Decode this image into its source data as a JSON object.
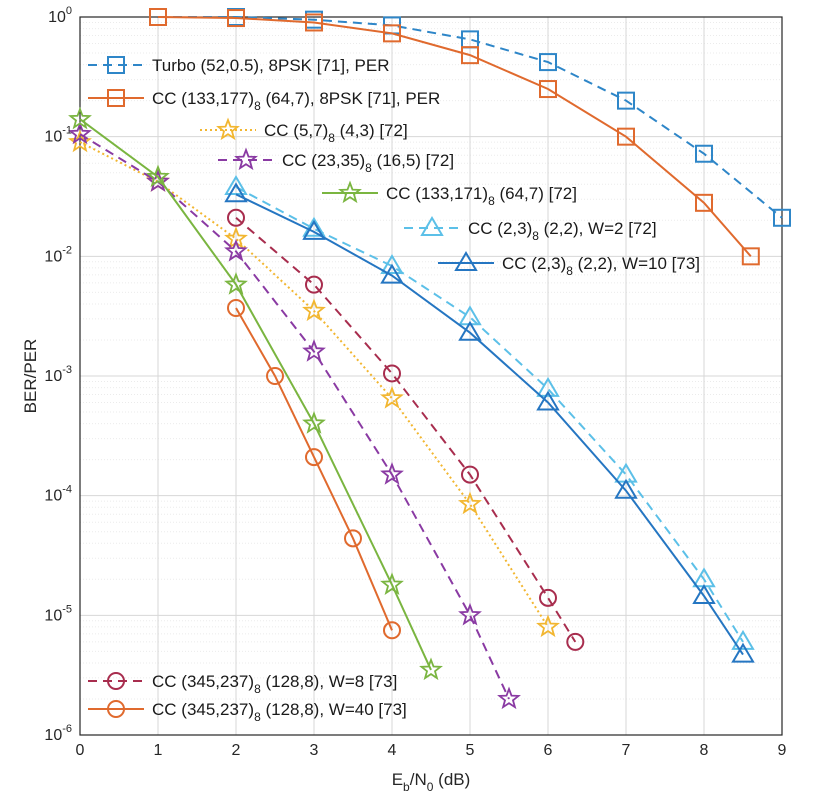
{
  "chart_data": {
    "type": "line",
    "title": "",
    "xlabel": "E_b/N_0 (dB)",
    "ylabel": "BER/PER",
    "xlim": [
      0,
      9
    ],
    "ylim": [
      1e-06,
      1
    ],
    "yscale": "log",
    "grid": true,
    "x_ticks": [
      "0",
      "1",
      "2",
      "3",
      "4",
      "5",
      "6",
      "7",
      "8",
      "9"
    ],
    "y_ticks": [
      {
        "base": "10",
        "exp": "0"
      },
      {
        "base": "10",
        "exp": "-1"
      },
      {
        "base": "10",
        "exp": "-2"
      },
      {
        "base": "10",
        "exp": "-3"
      },
      {
        "base": "10",
        "exp": "-4"
      },
      {
        "base": "10",
        "exp": "-5"
      },
      {
        "base": "10",
        "exp": "-6"
      }
    ],
    "series": [
      {
        "name": "Turbo (52,0.5), 8PSK [71], PER",
        "color": "#2e86c8",
        "dash": "dashed",
        "marker": "square",
        "x": [
          1,
          2,
          3,
          4,
          5,
          6,
          7,
          8,
          9
        ],
        "y": [
          1.0,
          1.0,
          0.95,
          0.85,
          0.65,
          0.42,
          0.2,
          0.072,
          0.021
        ]
      },
      {
        "name": "CC (133,177)8 (64,7), 8PSK [71], PER",
        "color": "#e06a2e",
        "dash": "solid",
        "marker": "square",
        "x": [
          1,
          2,
          3,
          4,
          5,
          6,
          7,
          8,
          8.6
        ],
        "y": [
          1.0,
          0.98,
          0.9,
          0.73,
          0.48,
          0.25,
          0.1,
          0.028,
          0.01
        ]
      },
      {
        "name": "CC (5,7)8 (4,3) [72]",
        "color": "#f2b630",
        "dash": "dotted",
        "marker": "star",
        "x": [
          0,
          1,
          2,
          3,
          4,
          5,
          6
        ],
        "y": [
          0.09,
          0.042,
          0.014,
          0.0035,
          0.00065,
          8.5e-05,
          8e-06
        ]
      },
      {
        "name": "CC (23,35)8 (16,5) [72]",
        "color": "#8a3aa3",
        "dash": "dashed",
        "marker": "star",
        "x": [
          0,
          1,
          2,
          3,
          4,
          5,
          5.5
        ],
        "y": [
          0.105,
          0.042,
          0.011,
          0.0016,
          0.00015,
          1e-05,
          2e-06
        ]
      },
      {
        "name": "CC (133,171)8 (64,7) [72]",
        "color": "#7ab540",
        "dash": "solid",
        "marker": "star",
        "x": [
          0,
          1,
          2,
          3,
          4,
          4.5
        ],
        "y": [
          0.14,
          0.046,
          0.0058,
          0.0004,
          1.8e-05,
          3.5e-06
        ]
      },
      {
        "name": "CC (2,3)8 (2,2), W=2 [72]",
        "color": "#5cc0e8",
        "dash": "dashed",
        "marker": "triangle",
        "x": [
          2,
          3,
          4,
          5,
          6,
          7,
          8,
          8.5
        ],
        "y": [
          0.038,
          0.017,
          0.0083,
          0.0031,
          0.00078,
          0.00015,
          2e-05,
          6e-06
        ]
      },
      {
        "name": "CC (2,3)8 (2,2), W=10 [73]",
        "color": "#2576c2",
        "dash": "solid",
        "marker": "triangle",
        "x": [
          2,
          3,
          4,
          5,
          6,
          7,
          8,
          8.5
        ],
        "y": [
          0.033,
          0.016,
          0.0069,
          0.0023,
          0.0006,
          0.00011,
          1.45e-05,
          4.7e-06
        ]
      },
      {
        "name": "CC (345,237)8 (128,8), W=8 [73]",
        "color": "#a82d4e",
        "dash": "dashed",
        "marker": "circle",
        "x": [
          2,
          3,
          4,
          5,
          6,
          6.35
        ],
        "y": [
          0.021,
          0.0058,
          0.00105,
          0.00015,
          1.4e-05,
          6e-06
        ]
      },
      {
        "name": "CC (345,237)8 (128,8), W=40 [73]",
        "color": "#e06a2e",
        "dash": "solid",
        "marker": "circle",
        "x": [
          2,
          2.5,
          3,
          3.5,
          4
        ],
        "y": [
          0.0037,
          0.001,
          0.00021,
          4.4e-05,
          7.5e-06
        ]
      }
    ],
    "legend": [
      {
        "prefix": "Turbo (52,0.5), 8PSK [71], PER"
      },
      {
        "prefix": "CC (133,177)",
        "sub": "8",
        "suffix": " (64,7), 8PSK [71], PER"
      },
      {
        "prefix": "CC (5,7)",
        "sub": "8",
        "suffix": " (4,3) [72]"
      },
      {
        "prefix": "CC (23,35)",
        "sub": "8",
        "suffix": " (16,5) [72]"
      },
      {
        "prefix": "CC (133,171)",
        "sub": "8",
        "suffix": " (64,7) [72]"
      },
      {
        "prefix": "CC (2,3)",
        "sub": "8",
        "suffix": " (2,2), W=2 [72]"
      },
      {
        "prefix": "CC (2,3)",
        "sub": "8",
        "suffix": " (2,2), W=10 [73]"
      },
      {
        "prefix": "CC (345,237)",
        "sub": "8",
        "suffix": " (128,8), W=8 [73]"
      },
      {
        "prefix": "CC (345,237)",
        "sub": "8",
        "suffix": " (128,8), W=40 [73]"
      }
    ]
  }
}
